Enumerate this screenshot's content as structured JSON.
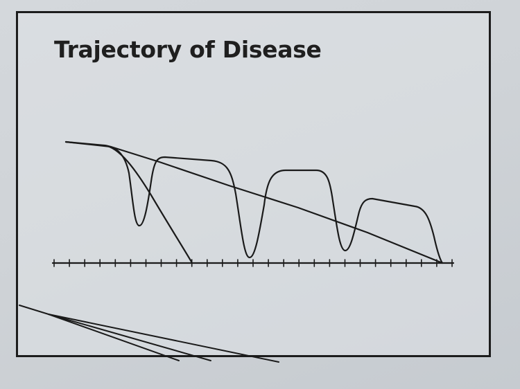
{
  "slide": {
    "title": "Trajectory of Disease"
  },
  "background_ghost_text": {
    "title": "",
    "lines": [
      "",
      "",
      "",
      "",
      "",
      "",
      "",
      "",
      "",
      ""
    ]
  },
  "colors": {
    "ink": "#1a1a1a",
    "paper": "#d4d8dc"
  }
}
